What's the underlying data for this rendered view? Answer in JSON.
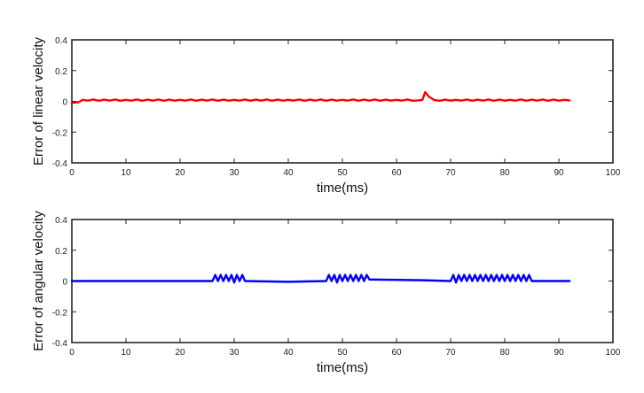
{
  "chart_data": [
    {
      "type": "line",
      "xlabel": "time(ms)",
      "ylabel": "Error of linear velocity",
      "xlim": [
        0,
        100
      ],
      "ylim": [
        -0.4,
        0.4
      ],
      "xticks": [
        "0",
        "10",
        "20",
        "30",
        "40",
        "50",
        "60",
        "70",
        "80",
        "90",
        "100"
      ],
      "yticks": [
        "0.4",
        "0.2",
        "0",
        "-0.2",
        "-0.4"
      ],
      "grid": false,
      "series": [
        {
          "color": "#ff0000",
          "x": [
            0,
            1.3,
            2,
            3,
            4,
            5,
            6,
            7,
            8,
            9,
            10,
            11,
            12,
            13,
            14,
            15,
            16,
            17,
            18,
            19,
            20,
            21,
            22,
            23,
            24,
            25,
            26,
            27,
            28,
            29,
            30,
            31,
            32,
            33,
            34,
            35,
            36,
            37,
            38,
            39,
            40,
            41,
            42,
            43,
            44,
            45,
            46,
            47,
            48,
            49,
            50,
            51,
            52,
            53,
            54,
            55,
            56,
            57,
            58,
            59,
            60,
            61,
            62,
            63,
            64,
            64.8,
            65.3,
            66,
            67,
            68,
            69,
            70,
            71,
            72,
            73,
            74,
            75,
            76,
            77,
            78,
            79,
            80,
            81,
            82,
            83,
            84,
            85,
            86,
            87,
            88,
            89,
            90,
            91,
            92
          ],
          "values": [
            -0.01,
            -0.005,
            0.01,
            0.005,
            0.012,
            0.004,
            0.011,
            0.005,
            0.012,
            0.004,
            0.01,
            0.005,
            0.012,
            0.004,
            0.011,
            0.005,
            0.012,
            0.004,
            0.011,
            0.005,
            0.01,
            0.005,
            0.012,
            0.004,
            0.011,
            0.005,
            0.012,
            0.004,
            0.011,
            0.005,
            0.01,
            0.005,
            0.012,
            0.004,
            0.011,
            0.005,
            0.012,
            0.004,
            0.011,
            0.005,
            0.01,
            0.005,
            0.012,
            0.004,
            0.011,
            0.005,
            0.012,
            0.004,
            0.011,
            0.005,
            0.01,
            0.005,
            0.012,
            0.004,
            0.011,
            0.005,
            0.012,
            0.004,
            0.011,
            0.005,
            0.01,
            0.005,
            0.012,
            0.004,
            0.006,
            0.01,
            0.06,
            0.03,
            0.008,
            0.004,
            0.011,
            0.005,
            0.01,
            0.005,
            0.012,
            0.004,
            0.011,
            0.005,
            0.012,
            0.004,
            0.011,
            0.005,
            0.01,
            0.005,
            0.012,
            0.004,
            0.011,
            0.005,
            0.012,
            0.004,
            0.011,
            0.005,
            0.01,
            0.006
          ]
        }
      ]
    },
    {
      "type": "line",
      "xlabel": "time(ms)",
      "ylabel": "Error of angular velocity",
      "xlim": [
        0,
        100
      ],
      "ylim": [
        -0.4,
        0.4
      ],
      "xticks": [
        "0",
        "10",
        "20",
        "30",
        "40",
        "50",
        "60",
        "70",
        "80",
        "90",
        "100"
      ],
      "yticks": [
        "0.4",
        "0.2",
        "0",
        "-0.2",
        "-0.4"
      ],
      "grid": false,
      "series": [
        {
          "color": "#0000ff",
          "x": [
            0,
            26,
            26.5,
            27,
            27.5,
            28,
            28.5,
            29,
            29.5,
            30,
            30.5,
            31,
            31.5,
            32,
            40,
            47,
            47.5,
            48,
            48.5,
            49,
            49.5,
            50,
            50.5,
            51,
            51.5,
            52,
            52.5,
            53,
            53.5,
            54,
            54.5,
            55,
            65,
            70,
            70.5,
            71,
            71.5,
            72,
            72.5,
            73,
            73.5,
            74,
            74.5,
            75,
            75.5,
            76,
            76.5,
            77,
            77.5,
            78,
            78.5,
            79,
            79.5,
            80,
            80.5,
            81,
            81.5,
            82,
            82.5,
            83,
            83.5,
            84,
            84.5,
            85,
            92
          ],
          "values": [
            0,
            0,
            0.04,
            0,
            0.04,
            0,
            0.04,
            0,
            0.04,
            -0.01,
            0.04,
            0,
            0.04,
            0,
            -0.005,
            0,
            0.04,
            0,
            0.04,
            -0.01,
            0.04,
            0,
            0.04,
            0,
            0.04,
            0,
            0.04,
            0,
            0.04,
            0,
            0.04,
            0.01,
            0.005,
            0,
            0.04,
            -0.01,
            0.04,
            0,
            0.04,
            0,
            0.04,
            0,
            0.04,
            0,
            0.04,
            0,
            0.04,
            0,
            0.04,
            0,
            0.04,
            0,
            0.04,
            0,
            0.04,
            0,
            0.04,
            0,
            0.04,
            0,
            0.04,
            0,
            0.04,
            0,
            0
          ]
        }
      ]
    }
  ]
}
